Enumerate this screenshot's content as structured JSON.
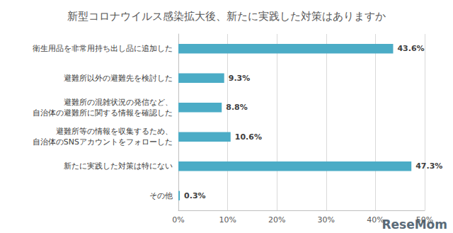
{
  "chart_data": {
    "type": "bar",
    "orientation": "horizontal",
    "title": "新型コロナウイルス感染拡大後、新たに実践した対策はありますか",
    "categories": [
      "衛生用品を非常用持ち出し品に追加した",
      "避難所以外の避難先を検討した",
      "避難所の混雑状況の発信など、\n自治体の避難所に関する情報を確認した",
      "避難所等の情報を収集するため、\n自治体のSNSアカウントをフォローした",
      "新たに実践した対策は特にない",
      "その他"
    ],
    "values": [
      43.6,
      9.3,
      8.8,
      10.6,
      47.3,
      0.3
    ],
    "value_labels": [
      "43.6%",
      "9.3%",
      "8.8%",
      "10.6%",
      "47.3%",
      "0.3%"
    ],
    "data_labels": true,
    "color": "#4bacc6",
    "xlim": [
      0,
      50
    ],
    "xticks": [
      {
        "value": 0,
        "label": "0%"
      },
      {
        "value": 10,
        "label": "10%"
      },
      {
        "value": 20,
        "label": "20%"
      },
      {
        "value": 30,
        "label": "30%"
      },
      {
        "value": 40,
        "label": "40%"
      },
      {
        "value": 50,
        "label": "50%"
      }
    ],
    "grid": true,
    "annotation": "ReseMom"
  }
}
